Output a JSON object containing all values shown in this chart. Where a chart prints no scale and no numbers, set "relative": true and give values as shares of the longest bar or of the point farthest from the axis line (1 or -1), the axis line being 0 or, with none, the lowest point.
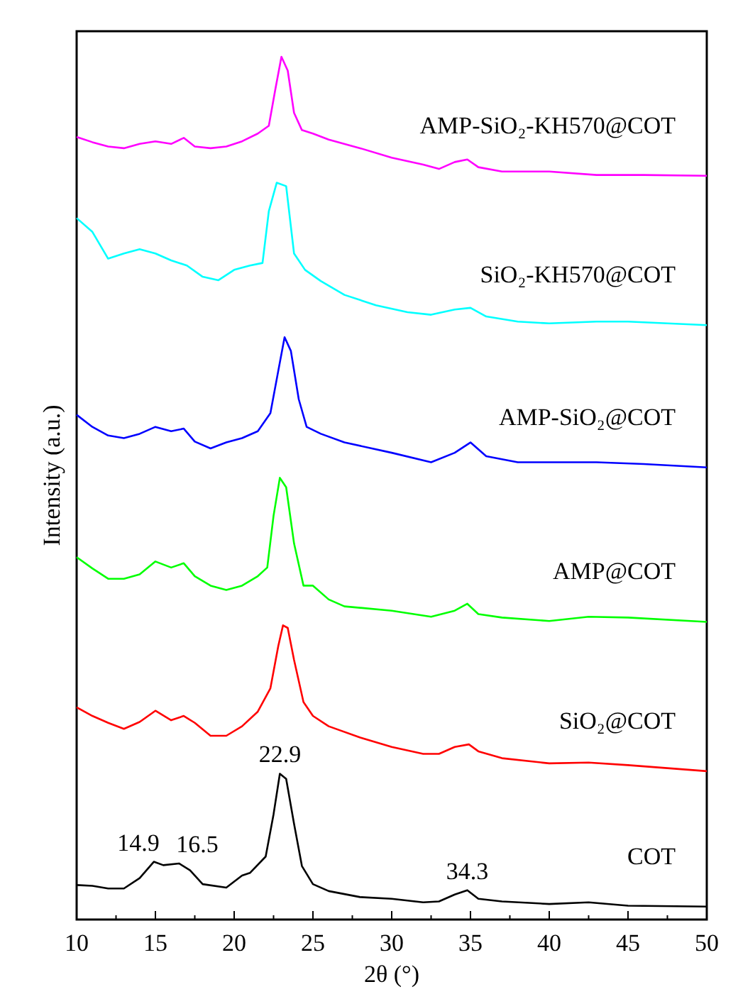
{
  "chart_data": {
    "type": "line",
    "relative": true,
    "xlabel": "2θ (°)",
    "ylabel": "Intensity (a.u.)",
    "xlim": [
      10,
      50
    ],
    "xticks": [
      10,
      {
        "value": 12.5,
        "label": null
      },
      15,
      {
        "value": 17.5,
        "label": null
      },
      20,
      {
        "value": 22.5,
        "label": null
      },
      25,
      {
        "value": 27.5,
        "label": null
      },
      30,
      {
        "value": 32.5,
        "label": null
      },
      35,
      {
        "value": 37.5,
        "label": null
      },
      40,
      {
        "value": 42.5,
        "label": null
      },
      45,
      {
        "value": 47.5,
        "label": null
      },
      50
    ],
    "grid": false,
    "legend": false,
    "marker": "none",
    "line_style": "solid",
    "annotations": [
      {
        "text": "14.9",
        "x": 14.9,
        "y": 0.067
      },
      {
        "text": "16.5",
        "x": 16.5,
        "y": 0.065
      },
      {
        "text": "22.9",
        "x": 22.9,
        "y": 0.169
      },
      {
        "text": "34.3",
        "x": 34.8,
        "y": 0.034
      }
    ],
    "series": [
      {
        "name": "COT",
        "color": "#000000",
        "x": [
          10,
          11,
          12,
          13,
          14,
          14.9,
          15.5,
          16.5,
          17.2,
          18,
          19.5,
          20.5,
          21,
          22,
          22.5,
          22.9,
          23.3,
          23.8,
          24.3,
          25,
          26,
          28,
          30,
          32,
          33,
          34,
          34.8,
          35.5,
          37,
          40,
          42.5,
          45,
          50
        ],
        "values": [
          0.04,
          0.039,
          0.036,
          0.036,
          0.048,
          0.067,
          0.063,
          0.065,
          0.057,
          0.041,
          0.037,
          0.051,
          0.054,
          0.073,
          0.122,
          0.169,
          0.163,
          0.111,
          0.062,
          0.041,
          0.033,
          0.026,
          0.024,
          0.02,
          0.021,
          0.029,
          0.034,
          0.024,
          0.021,
          0.018,
          0.02,
          0.016,
          0.015
        ]
      },
      {
        "name": "SiO₂@COT",
        "color": "#ff0000",
        "x": [
          10,
          11,
          12,
          13,
          14,
          15,
          16,
          16.8,
          17.5,
          18.5,
          19.5,
          20.5,
          21.5,
          22.3,
          22.8,
          23.1,
          23.4,
          23.8,
          24.4,
          25,
          26,
          28,
          30,
          32,
          33,
          34,
          34.9,
          35.5,
          37,
          40,
          42.5,
          45,
          50
        ],
        "values": [
          0.246,
          0.236,
          0.228,
          0.221,
          0.229,
          0.242,
          0.231,
          0.236,
          0.228,
          0.213,
          0.213,
          0.224,
          0.241,
          0.268,
          0.317,
          0.341,
          0.338,
          0.301,
          0.252,
          0.236,
          0.224,
          0.211,
          0.2,
          0.192,
          0.192,
          0.2,
          0.203,
          0.195,
          0.187,
          0.181,
          0.182,
          0.179,
          0.172
        ]
      },
      {
        "name": "AMP@COT",
        "color": "#00ff00",
        "x": [
          10,
          11,
          12,
          13,
          14,
          15,
          16,
          16.8,
          17.5,
          18.5,
          19.5,
          20.5,
          21.5,
          22.1,
          22.5,
          22.9,
          23.3,
          23.8,
          24.4,
          25,
          26,
          27,
          30,
          32.5,
          34,
          34.8,
          35.5,
          37,
          40,
          42.5,
          45,
          50
        ],
        "values": [
          0.42,
          0.407,
          0.395,
          0.395,
          0.4,
          0.415,
          0.408,
          0.413,
          0.398,
          0.387,
          0.382,
          0.387,
          0.398,
          0.408,
          0.468,
          0.512,
          0.501,
          0.436,
          0.387,
          0.387,
          0.371,
          0.363,
          0.358,
          0.351,
          0.358,
          0.366,
          0.354,
          0.35,
          0.346,
          0.351,
          0.35,
          0.345
        ]
      },
      {
        "name": "AMP-SiO₂@COT",
        "color": "#0000ff",
        "x": [
          10,
          11,
          12,
          13,
          14,
          15,
          16,
          16.8,
          17.5,
          18.5,
          19.5,
          20.5,
          21.5,
          22.3,
          22.8,
          23.2,
          23.6,
          24.1,
          24.6,
          25.5,
          27,
          30,
          32.5,
          34,
          35,
          36,
          38,
          40,
          43,
          46,
          50
        ],
        "values": [
          0.585,
          0.571,
          0.561,
          0.558,
          0.563,
          0.571,
          0.566,
          0.569,
          0.554,
          0.546,
          0.553,
          0.558,
          0.566,
          0.587,
          0.636,
          0.675,
          0.659,
          0.603,
          0.571,
          0.563,
          0.553,
          0.541,
          0.53,
          0.541,
          0.553,
          0.537,
          0.53,
          0.53,
          0.53,
          0.528,
          0.524
        ]
      },
      {
        "name": "SiO₂-KH570@COT",
        "color": "#00ffff",
        "x": [
          10,
          11,
          12,
          13,
          14,
          15,
          16,
          17,
          18,
          19,
          20,
          21,
          21.8,
          22.2,
          22.7,
          23.3,
          23.8,
          24.5,
          25.5,
          27,
          29,
          31,
          32.5,
          34,
          35,
          36,
          38,
          40,
          43,
          45,
          50
        ],
        "values": [
          0.813,
          0.797,
          0.766,
          0.772,
          0.777,
          0.772,
          0.764,
          0.758,
          0.745,
          0.741,
          0.753,
          0.758,
          0.761,
          0.821,
          0.854,
          0.85,
          0.772,
          0.753,
          0.74,
          0.724,
          0.712,
          0.704,
          0.701,
          0.707,
          0.709,
          0.699,
          0.693,
          0.691,
          0.693,
          0.693,
          0.689
        ]
      },
      {
        "name": "AMP-SiO₂-KH570@COT",
        "color": "#ff00ff",
        "x": [
          10,
          11,
          12,
          13,
          14,
          15,
          16,
          16.8,
          17.5,
          18.5,
          19.5,
          20.5,
          21.5,
          22.2,
          22.6,
          23,
          23.4,
          23.8,
          24.3,
          25,
          26,
          28,
          30,
          32,
          33,
          34,
          34.8,
          35.5,
          37,
          40,
          43,
          46,
          50
        ],
        "values": [
          0.907,
          0.901,
          0.896,
          0.894,
          0.899,
          0.902,
          0.899,
          0.906,
          0.896,
          0.894,
          0.896,
          0.902,
          0.911,
          0.92,
          0.961,
          1,
          0.984,
          0.935,
          0.915,
          0.911,
          0.904,
          0.894,
          0.883,
          0.875,
          0.87,
          0.878,
          0.881,
          0.872,
          0.867,
          0.867,
          0.863,
          0.863,
          0.862
        ]
      }
    ]
  }
}
